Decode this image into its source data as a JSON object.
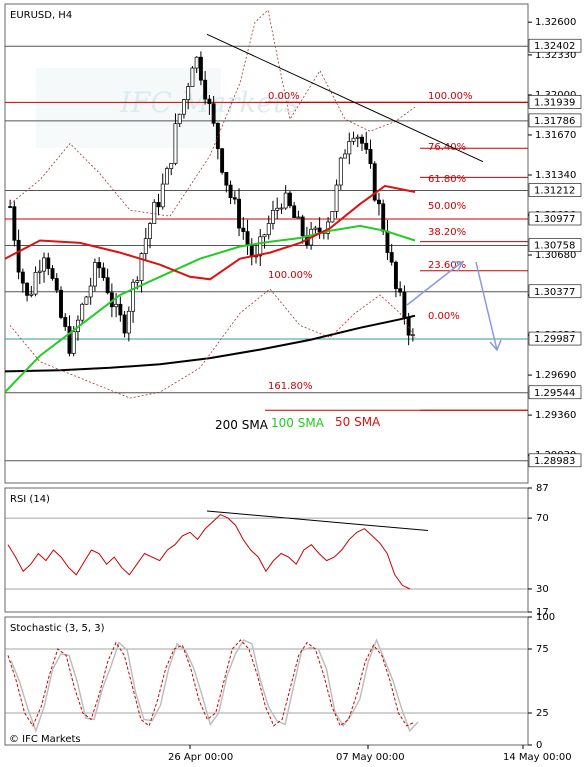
{
  "chart_data": [
    {
      "type": "candlestick",
      "title": "EURUSD, H4",
      "ylim": [
        1.288,
        1.3275
      ],
      "y_ticks": [
        "1.32600",
        "1.32330",
        "1.32000",
        "1.31670",
        "1.31340",
        "1.31010",
        "1.30680",
        "1.30350",
        "1.30020",
        "1.29690",
        "1.29360",
        "1.29030"
      ],
      "price_tags": [
        {
          "label": "1.32402",
          "value": 1.32402
        },
        {
          "label": "1.31939",
          "value": 1.31939,
          "color": "#cc0000"
        },
        {
          "label": "1.31786",
          "value": 1.31786
        },
        {
          "label": "1.31212",
          "value": 1.31212
        },
        {
          "label": "1.30977",
          "value": 1.30977,
          "color": "#cc0000"
        },
        {
          "label": "1.30758",
          "value": 1.30758
        },
        {
          "label": "1.30377",
          "value": 1.30377
        },
        {
          "label": "1.29987",
          "value": 1.29987,
          "color": "#339999"
        },
        {
          "label": "1.29544",
          "value": 1.29544
        },
        {
          "label": "1.28983",
          "value": 1.28983
        }
      ],
      "fibonacci": [
        {
          "label": "0.00%",
          "value": 1.31939
        },
        {
          "label": "100.00%",
          "value": 1.31939
        },
        {
          "label": "76.40%",
          "value": 1.3156
        },
        {
          "label": "61.80%",
          "value": 1.3132
        },
        {
          "label": "50.00%",
          "value": 1.30977
        },
        {
          "label": "38.20%",
          "value": 1.3079
        },
        {
          "label": "23.60%",
          "value": 1.3055
        },
        {
          "label": "100.00%",
          "value": 1.305
        },
        {
          "label": "0.00%",
          "value": 1.29987
        },
        {
          "label": "161.80%",
          "value": 1.294
        }
      ],
      "legend": [
        {
          "name": "200 SMA",
          "color": "#000000"
        },
        {
          "name": "100 SMA",
          "color": "#22cc22"
        },
        {
          "name": "50 SMA",
          "color": "#dd1111"
        }
      ],
      "watermark": "IFC Markets",
      "x_ticks": [
        "26 Apr 00:00",
        "07 May 00:00",
        "14 May 00:00"
      ]
    },
    {
      "type": "line",
      "title": "RSI (14)",
      "ylim": [
        17,
        87
      ],
      "y_ticks": [
        "87",
        "70",
        "30",
        "17"
      ],
      "last_value": 30
    },
    {
      "type": "line",
      "title": "Stochastic (3, 5, 3)",
      "ylim": [
        0,
        100
      ],
      "y_ticks": [
        "100",
        "75",
        "25",
        "0"
      ]
    }
  ],
  "footer": {
    "copyright": "© IFC Markets"
  }
}
